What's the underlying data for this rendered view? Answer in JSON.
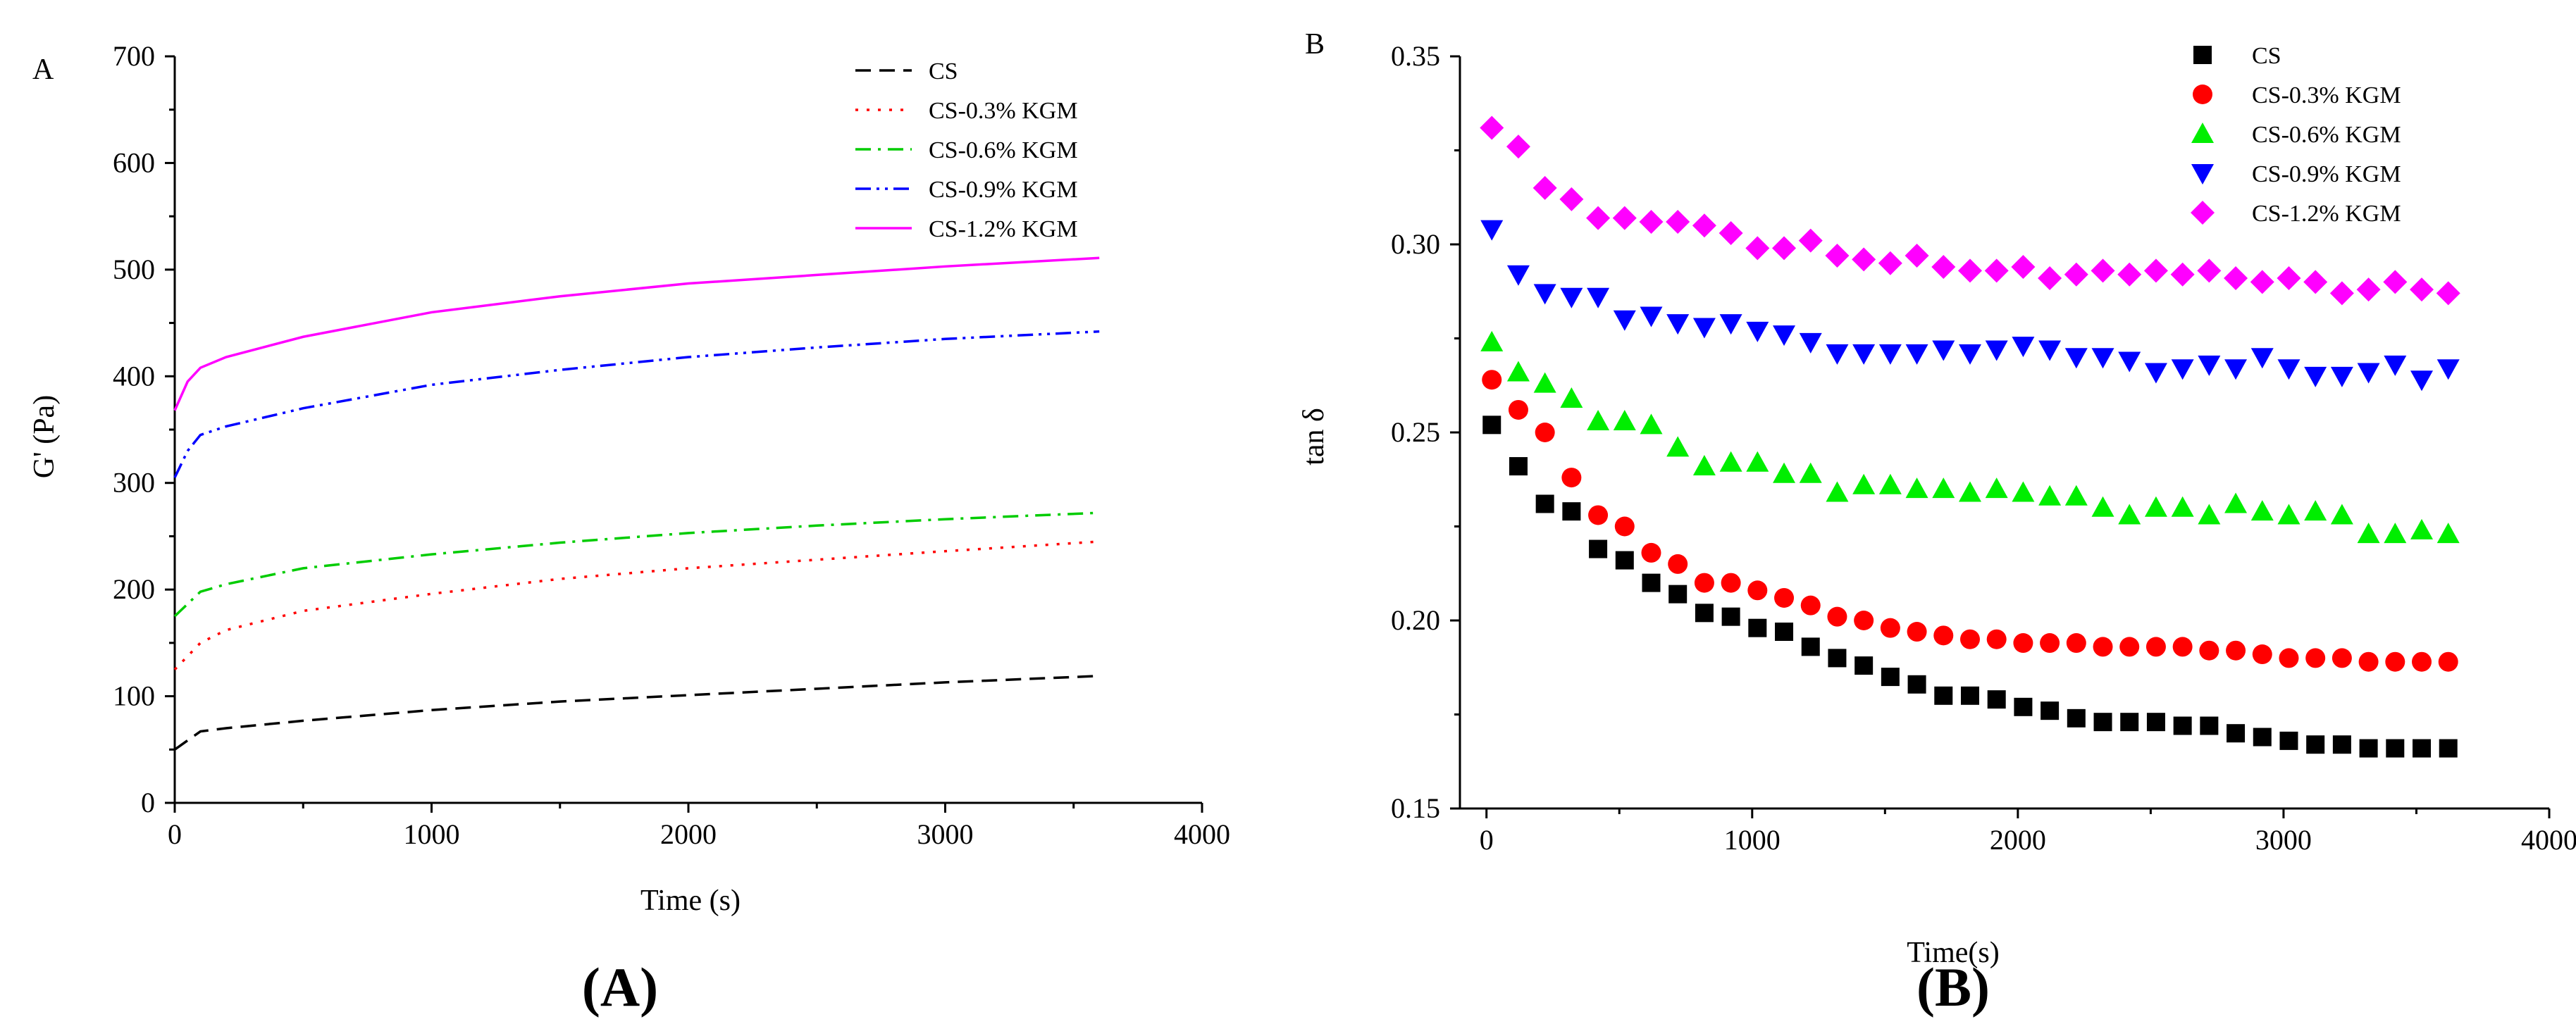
{
  "chart_data": [
    {
      "type": "line",
      "panel_label": "A",
      "caption": "(A)",
      "xlabel": "Time (s)",
      "ylabel": "G' (Pa)",
      "xlim": [
        0,
        4000
      ],
      "ylim": [
        0,
        700
      ],
      "xticks": [
        0,
        1000,
        2000,
        3000,
        4000
      ],
      "yticks": [
        0,
        100,
        200,
        300,
        400,
        500,
        600,
        700
      ],
      "grid": false,
      "legend_position": "top-right",
      "series": [
        {
          "name": "CS",
          "color": "#000000",
          "dash": "dashed",
          "x": [
            0,
            100,
            200,
            500,
            1000,
            1500,
            2000,
            2500,
            3000,
            3600
          ],
          "y": [
            50,
            67,
            70,
            77,
            87,
            95,
            101,
            107,
            113,
            119
          ]
        },
        {
          "name": "CS-0.3% KGM",
          "color": "#ff0000",
          "dash": "dotted",
          "x": [
            0,
            100,
            200,
            500,
            1000,
            1500,
            2000,
            2500,
            3000,
            3600
          ],
          "y": [
            125,
            150,
            162,
            180,
            196,
            210,
            220,
            228,
            236,
            245
          ]
        },
        {
          "name": "CS-0.6% KGM",
          "color": "#00cc00",
          "dash": "dashdot",
          "x": [
            0,
            100,
            200,
            500,
            1000,
            1500,
            2000,
            2500,
            3000,
            3600
          ],
          "y": [
            175,
            198,
            205,
            220,
            233,
            244,
            253,
            260,
            266,
            272
          ]
        },
        {
          "name": "CS-0.9% KGM",
          "color": "#0000ff",
          "dash": "dashdotdot",
          "x": [
            0,
            50,
            100,
            200,
            500,
            1000,
            1500,
            2000,
            2500,
            3000,
            3600
          ],
          "y": [
            305,
            330,
            345,
            353,
            370,
            392,
            406,
            418,
            427,
            435,
            442
          ]
        },
        {
          "name": "CS-1.2% KGM",
          "color": "#ff00ff",
          "dash": "solid",
          "x": [
            0,
            50,
            100,
            200,
            500,
            1000,
            1500,
            2000,
            2500,
            3000,
            3600
          ],
          "y": [
            368,
            395,
            408,
            418,
            437,
            460,
            475,
            487,
            495,
            503,
            511
          ]
        }
      ]
    },
    {
      "type": "scatter",
      "panel_label": "B",
      "caption": "(B)",
      "xlabel": "Time(s)",
      "ylabel": "tan δ",
      "xlim": [
        -100,
        4000
      ],
      "ylim": [
        0.15,
        0.35
      ],
      "xticks": [
        0,
        1000,
        2000,
        3000,
        4000
      ],
      "yticks": [
        "0.15",
        "0.20",
        "0.25",
        "0.30",
        "0.35"
      ],
      "grid": false,
      "legend_position": "top-right",
      "x": [
        20,
        120,
        220,
        320,
        420,
        520,
        620,
        720,
        820,
        920,
        1020,
        1120,
        1220,
        1320,
        1420,
        1520,
        1620,
        1720,
        1820,
        1920,
        2020,
        2120,
        2220,
        2320,
        2420,
        2520,
        2620,
        2720,
        2820,
        2920,
        3020,
        3120,
        3220,
        3320,
        3420,
        3520,
        3620
      ],
      "series": [
        {
          "name": "CS",
          "color": "#000000",
          "marker": "square",
          "y": [
            0.252,
            0.241,
            0.231,
            0.229,
            0.219,
            0.216,
            0.21,
            0.207,
            0.202,
            0.201,
            0.198,
            0.197,
            0.193,
            0.19,
            0.188,
            0.185,
            0.183,
            0.18,
            0.18,
            0.179,
            0.177,
            0.176,
            0.174,
            0.173,
            0.173,
            0.173,
            0.172,
            0.172,
            0.17,
            0.169,
            0.168,
            0.167,
            0.167,
            0.166,
            0.166,
            0.166,
            0.166
          ]
        },
        {
          "name": "CS-0.3% KGM",
          "color": "#ff0000",
          "marker": "circle",
          "y": [
            0.264,
            0.256,
            0.25,
            0.238,
            0.228,
            0.225,
            0.218,
            0.215,
            0.21,
            0.21,
            0.208,
            0.206,
            0.204,
            0.201,
            0.2,
            0.198,
            0.197,
            0.196,
            0.195,
            0.195,
            0.194,
            0.194,
            0.194,
            0.193,
            0.193,
            0.193,
            0.193,
            0.192,
            0.192,
            0.191,
            0.19,
            0.19,
            0.19,
            0.189,
            0.189,
            0.189,
            0.189
          ]
        },
        {
          "name": "CS-0.6% KGM",
          "color": "#00ee00",
          "marker": "triangle-up",
          "y": [
            0.274,
            0.266,
            0.263,
            0.259,
            0.253,
            0.253,
            0.252,
            0.246,
            0.241,
            0.242,
            0.242,
            0.239,
            0.239,
            0.234,
            0.236,
            0.236,
            0.235,
            0.235,
            0.234,
            0.235,
            0.234,
            0.233,
            0.233,
            0.23,
            0.228,
            0.23,
            0.23,
            0.228,
            0.231,
            0.229,
            0.228,
            0.229,
            0.228,
            0.223,
            0.223,
            0.224,
            0.223
          ]
        },
        {
          "name": "CS-0.9% KGM",
          "color": "#0000ff",
          "marker": "triangle-down",
          "y": [
            0.304,
            0.292,
            0.287,
            0.286,
            0.286,
            0.28,
            0.281,
            0.279,
            0.278,
            0.279,
            0.277,
            0.276,
            0.274,
            0.271,
            0.271,
            0.271,
            0.271,
            0.272,
            0.271,
            0.272,
            0.273,
            0.272,
            0.27,
            0.27,
            0.269,
            0.266,
            0.267,
            0.268,
            0.267,
            0.27,
            0.267,
            0.265,
            0.265,
            0.266,
            0.268,
            0.264,
            0.267
          ]
        },
        {
          "name": "CS-1.2% KGM",
          "color": "#ff00ff",
          "marker": "diamond",
          "y": [
            0.331,
            0.326,
            0.315,
            0.312,
            0.307,
            0.307,
            0.306,
            0.306,
            0.305,
            0.303,
            0.299,
            0.299,
            0.301,
            0.297,
            0.296,
            0.295,
            0.297,
            0.294,
            0.293,
            0.293,
            0.294,
            0.291,
            0.292,
            0.293,
            0.292,
            0.293,
            0.292,
            0.293,
            0.291,
            0.29,
            0.291,
            0.29,
            0.287,
            0.288,
            0.29,
            0.288,
            0.287
          ]
        }
      ]
    }
  ]
}
